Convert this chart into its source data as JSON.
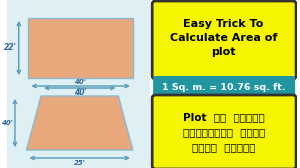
{
  "bg_color": "#ffffff",
  "left_bg": "#dff0f5",
  "rect_fill": "#e8a87c",
  "rect_stroke": "#8ab8cc",
  "arrow_color": "#5599bb",
  "dim_text_color": "#336699",
  "rect_label_w": "40'",
  "rect_label_h": "22'",
  "trap_label_top": "40'",
  "trap_label_bot": "25'",
  "trap_label_h": "40'",
  "yellow_box1_text": "Easy Trick To\nCalculate Area of\nplot",
  "teal_box_text": "1 Sq. m. = 10.76 sq. ft.",
  "yellow_box2_line1": "Plot  का  एरिया",
  "yellow_box2_line2": "निकलनेका  सबसे",
  "yellow_box2_line3": "आसान  तरीका",
  "yellow_color": "#f5f500",
  "teal_color": "#2196a0",
  "white": "#ffffff",
  "black": "#000000",
  "dark_border": "#333333"
}
